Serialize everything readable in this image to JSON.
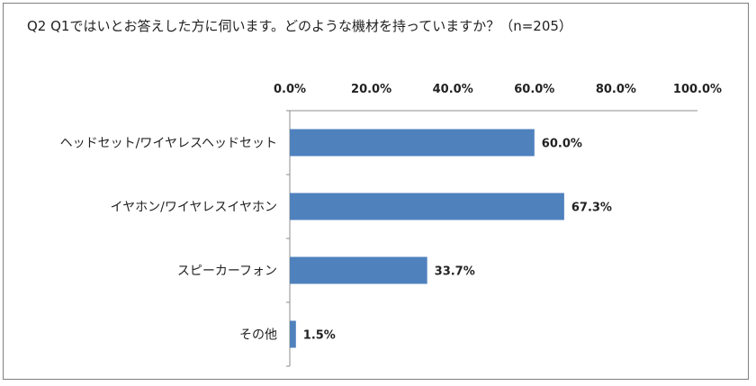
{
  "chart_data": {
    "type": "bar",
    "orientation": "horizontal",
    "title": "Q2 Q1ではいとお答えした方に伺います。どのような機材を持っていますか？（n=205）",
    "categories": [
      "ヘッドセット/ワイヤレスヘッドセット",
      "イヤホン/ワイヤレスイヤホン",
      "スピーカーフォン",
      "その他"
    ],
    "values": [
      60.0,
      67.3,
      33.7,
      1.5
    ],
    "data_labels": [
      "60.0%",
      "67.3%",
      "33.7%",
      "1.5%"
    ],
    "x_ticks": [
      "0.0%",
      "20.0%",
      "40.0%",
      "60.0%",
      "80.0%",
      "100.0%"
    ],
    "xlim": [
      0,
      100
    ],
    "axis_position": "top",
    "grid": false,
    "bar_color": "#4f81bd"
  }
}
